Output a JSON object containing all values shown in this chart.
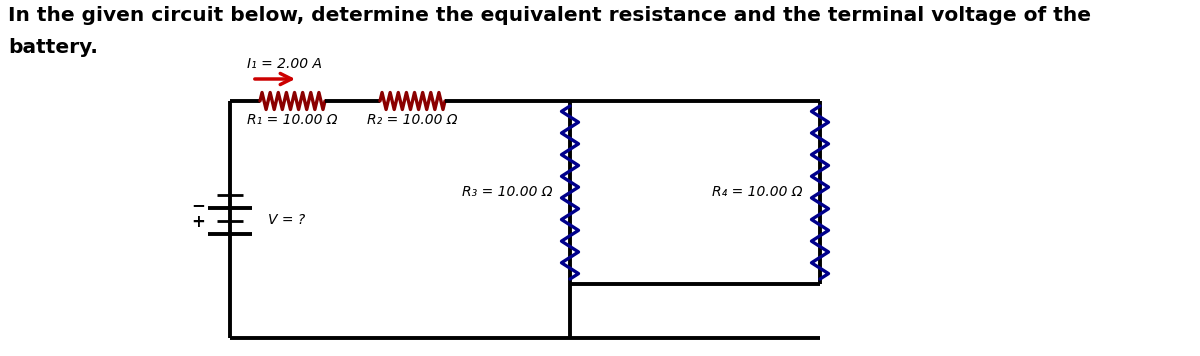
{
  "title_line1": "In the given circuit below, determine the equivalent resistance and the terminal voltage of the",
  "title_line2": "battery.",
  "current_label": "I₁ = 2.00 A",
  "r1_label": "R₁ = 10.00 Ω",
  "r2_label": "R₂ = 10.00 Ω",
  "r3_label": "R₃ = 10.00 Ω",
  "r4_label": "R₄ = 10.00 Ω",
  "v_label": "V = ?",
  "plus_label": "+",
  "minus_label": "−",
  "bg_color": "#ffffff",
  "wire_color": "#000000",
  "resistor_h_color": "#8B0000",
  "resistor_v_color": "#00008B",
  "arrow_color": "#CC0000",
  "text_color": "#000000",
  "font_size_title": 14.5,
  "font_size_label": 10
}
